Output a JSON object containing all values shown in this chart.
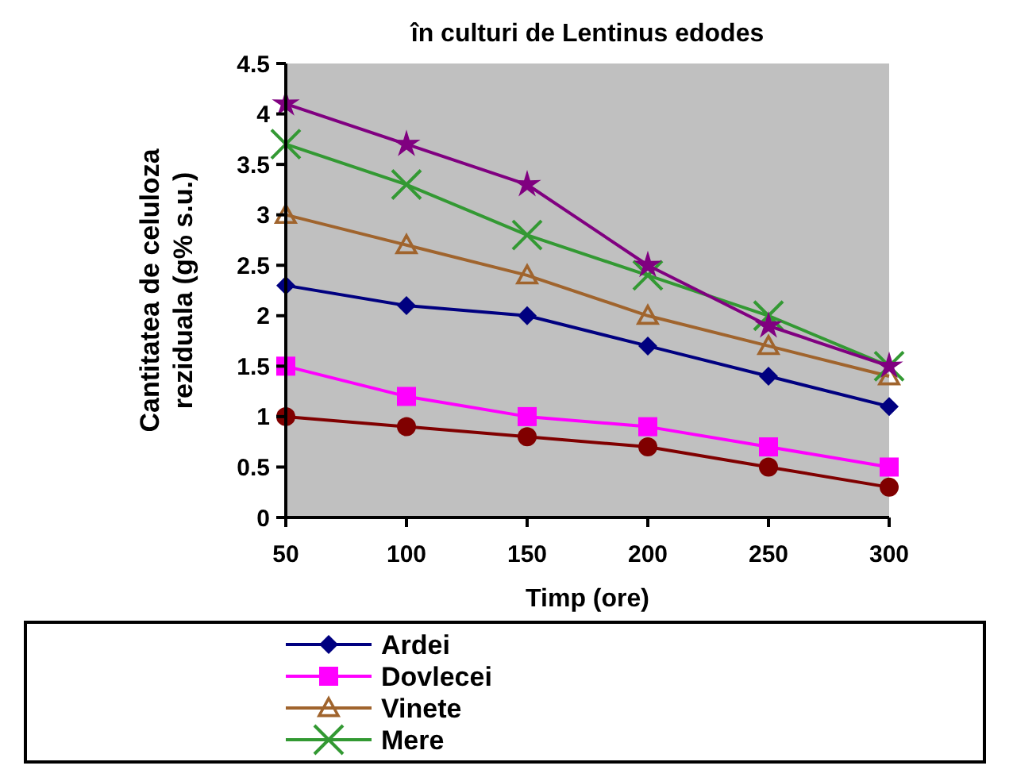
{
  "chart_data": {
    "type": "line",
    "title": "în culturi de Lentinus edodes",
    "xlabel": "Timp (ore)",
    "ylabel": "Cantitatea de celuloza reziduala (g% s.u.)",
    "x": [
      50,
      100,
      150,
      200,
      250,
      300
    ],
    "xlim": [
      50,
      300
    ],
    "xticks": [
      50,
      100,
      150,
      200,
      250,
      300
    ],
    "ylim": [
      0,
      4.5
    ],
    "yticks": [
      0,
      0.5,
      1,
      1.5,
      2,
      2.5,
      3,
      3.5,
      4,
      4.5
    ],
    "grid": false,
    "legend": "bottom",
    "series": [
      {
        "name": "Ardei",
        "color": "#000080",
        "marker": "diamond",
        "values": [
          2.3,
          2.1,
          2.0,
          1.7,
          1.4,
          1.1
        ]
      },
      {
        "name": "Dovlecei",
        "color": "#ff00ff",
        "marker": "square",
        "values": [
          1.5,
          1.2,
          1.0,
          0.9,
          0.7,
          0.5
        ]
      },
      {
        "name": "Vinete",
        "color": "#a0642d",
        "marker": "triangle",
        "values": [
          3.0,
          2.7,
          2.4,
          2.0,
          1.7,
          1.4
        ]
      },
      {
        "name": "Mere",
        "color": "#339933",
        "marker": "cross",
        "values": [
          3.7,
          3.3,
          2.8,
          2.4,
          2.0,
          1.5
        ]
      },
      {
        "color": "#800080",
        "marker": "star",
        "values": [
          4.1,
          3.7,
          3.3,
          2.5,
          1.9,
          1.5
        ]
      },
      {
        "color": "#800000",
        "marker": "circle",
        "values": [
          1.0,
          0.9,
          0.8,
          0.7,
          0.5,
          0.3
        ]
      }
    ]
  }
}
